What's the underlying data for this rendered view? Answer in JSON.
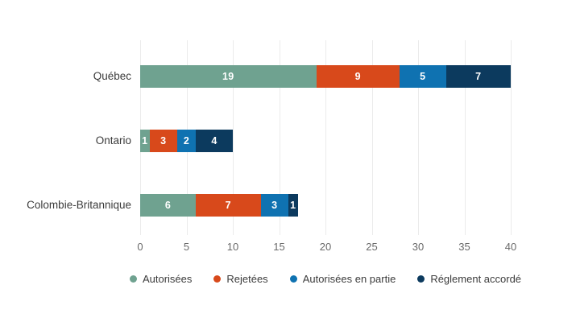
{
  "chart_data": {
    "type": "bar",
    "orientation": "horizontal",
    "stacked": true,
    "title": "",
    "xlabel": "",
    "ylabel": "",
    "categories": [
      "Québec",
      "Ontario",
      "Colombie-Britannique"
    ],
    "series": [
      {
        "name": "Autorisées",
        "color": "#6FA290",
        "values": [
          19,
          1,
          6
        ]
      },
      {
        "name": "Rejetées",
        "color": "#D8491B",
        "values": [
          9,
          3,
          7
        ]
      },
      {
        "name": "Autorisées en partie",
        "color": "#0F72B1",
        "values": [
          5,
          2,
          3
        ]
      },
      {
        "name": "Réglement accordé",
        "color": "#0C3A5E",
        "values": [
          7,
          4,
          1
        ]
      }
    ],
    "totals": [
      40,
      10,
      17
    ],
    "x_axis": {
      "min": 0,
      "max": 40,
      "ticks": [
        0,
        5,
        10,
        15,
        20,
        25,
        30,
        35,
        40
      ]
    },
    "grid": "vertical-on",
    "gridline_color": "#EBEBEB",
    "value_labels": "white-centered-in-segment",
    "legend_position": "bottom-center"
  },
  "layout_text": {}
}
